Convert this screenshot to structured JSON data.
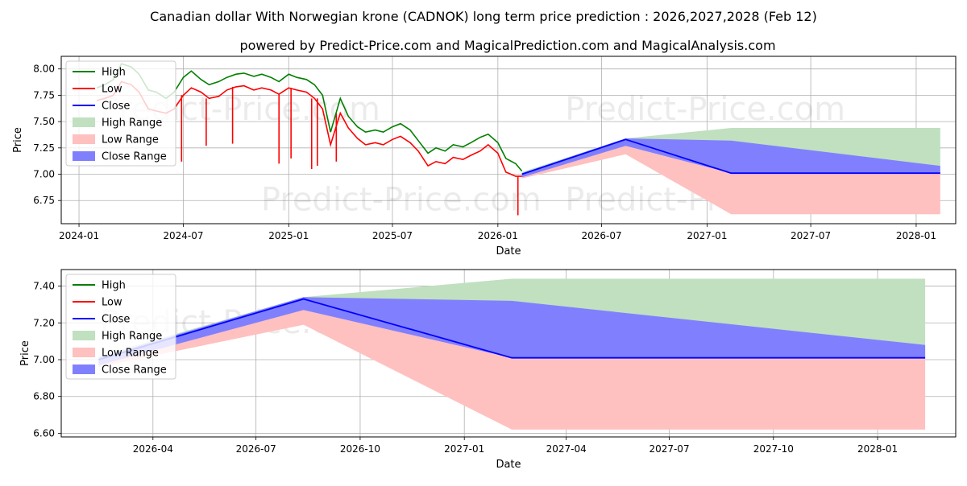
{
  "header": {
    "title": "Canadian dollar With Norwegian krone (CADNOK) long term price prediction : 2026,2027,2028 (Feb 12)",
    "subtitle": "powered by Predict-Price.com and MagicalPrediction.com and MagicalAnalysis.com"
  },
  "watermark": "Predict-Price.com",
  "colors": {
    "high": "#008000",
    "low": "#ff0000",
    "close": "#0000ff",
    "high_range": "#c0e0c0",
    "low_range": "#ffc0c0",
    "close_range": "#8080ff",
    "grid": "#b0b0b0"
  },
  "chart_data": [
    {
      "type": "line",
      "title": "",
      "xlabel": "Date",
      "ylabel": "Price",
      "xlim": [
        "2023-12-01",
        "2028-03-10"
      ],
      "ylim": [
        6.53,
        8.12
      ],
      "x_ticks": [
        "2024-01",
        "2024-07",
        "2025-01",
        "2025-07",
        "2026-01",
        "2026-07",
        "2027-01",
        "2027-07",
        "2028-01"
      ],
      "y_ticks": [
        6.75,
        7.0,
        7.25,
        7.5,
        7.75,
        8.0
      ],
      "grid": true,
      "legend": {
        "position": "top-left",
        "entries": [
          "High",
          "Low",
          "Close",
          "High Range",
          "Low Range",
          "Close Range"
        ]
      },
      "history": {
        "dates": [
          "2024-02-01",
          "2024-02-15",
          "2024-03-01",
          "2024-03-15",
          "2024-04-01",
          "2024-04-15",
          "2024-05-01",
          "2024-05-15",
          "2024-06-01",
          "2024-06-15",
          "2024-07-01",
          "2024-07-15",
          "2024-08-01",
          "2024-08-15",
          "2024-09-01",
          "2024-09-15",
          "2024-10-01",
          "2024-10-15",
          "2024-11-01",
          "2024-11-15",
          "2024-12-01",
          "2024-12-15",
          "2025-01-01",
          "2025-01-15",
          "2025-02-01",
          "2025-02-15",
          "2025-03-01",
          "2025-03-15",
          "2025-04-01",
          "2025-04-15",
          "2025-05-01",
          "2025-05-15",
          "2025-06-01",
          "2025-06-15",
          "2025-07-01",
          "2025-07-15",
          "2025-08-01",
          "2025-08-15",
          "2025-09-01",
          "2025-09-15",
          "2025-10-01",
          "2025-10-15",
          "2025-11-01",
          "2025-11-15",
          "2025-12-01",
          "2025-12-15",
          "2026-01-01",
          "2026-01-15",
          "2026-02-01",
          "2026-02-12"
        ],
        "high": [
          7.82,
          7.85,
          7.9,
          8.05,
          8.02,
          7.95,
          7.8,
          7.78,
          7.72,
          7.78,
          7.92,
          7.98,
          7.9,
          7.85,
          7.88,
          7.92,
          7.95,
          7.96,
          7.93,
          7.95,
          7.92,
          7.88,
          7.95,
          7.92,
          7.9,
          7.85,
          7.75,
          7.4,
          7.72,
          7.55,
          7.45,
          7.4,
          7.42,
          7.4,
          7.45,
          7.48,
          7.42,
          7.32,
          7.2,
          7.25,
          7.22,
          7.28,
          7.26,
          7.3,
          7.35,
          7.38,
          7.3,
          7.15,
          7.1,
          7.03
        ],
        "low": [
          7.7,
          7.72,
          7.75,
          7.88,
          7.85,
          7.78,
          7.62,
          7.6,
          7.58,
          7.62,
          7.75,
          7.82,
          7.78,
          7.72,
          7.74,
          7.8,
          7.83,
          7.84,
          7.8,
          7.82,
          7.8,
          7.76,
          7.82,
          7.8,
          7.78,
          7.72,
          7.62,
          7.28,
          7.58,
          7.44,
          7.34,
          7.28,
          7.3,
          7.28,
          7.33,
          7.36,
          7.3,
          7.22,
          7.08,
          7.12,
          7.1,
          7.16,
          7.14,
          7.18,
          7.22,
          7.28,
          7.2,
          7.02,
          6.98,
          6.98
        ],
        "low_spikes": [
          {
            "date": "2024-06-28",
            "value": 7.12
          },
          {
            "date": "2024-08-10",
            "value": 7.27
          },
          {
            "date": "2024-09-25",
            "value": 7.29
          },
          {
            "date": "2024-12-15",
            "value": 7.1
          },
          {
            "date": "2025-01-05",
            "value": 7.15
          },
          {
            "date": "2025-02-10",
            "value": 7.05
          },
          {
            "date": "2025-02-20",
            "value": 7.08
          },
          {
            "date": "2025-03-25",
            "value": 7.12
          },
          {
            "date": "2026-02-05",
            "value": 6.61
          }
        ]
      },
      "forecast": {
        "dates": [
          "2026-02-12",
          "2026-08-12",
          "2027-02-12",
          "2028-02-12"
        ],
        "close": [
          7.0,
          7.33,
          7.01,
          7.01
        ],
        "high_range": [
          [
            6.99,
            7.02
          ],
          [
            7.26,
            7.34
          ],
          [
            7.01,
            7.44
          ],
          [
            7.01,
            7.44
          ]
        ],
        "low_range": [
          [
            6.96,
            7.0
          ],
          [
            7.19,
            7.28
          ],
          [
            6.62,
            7.01
          ],
          [
            6.62,
            7.01
          ]
        ],
        "close_range": [
          [
            6.97,
            7.01
          ],
          [
            7.27,
            7.34
          ],
          [
            7.01,
            7.32
          ],
          [
            7.01,
            7.08
          ]
        ]
      }
    },
    {
      "type": "line",
      "title": "",
      "xlabel": "Date",
      "ylabel": "Price",
      "xlim": [
        "2026-01-10",
        "2028-03-10"
      ],
      "ylim": [
        6.58,
        7.49
      ],
      "x_ticks": [
        "2026-04",
        "2026-07",
        "2026-10",
        "2027-01",
        "2027-04",
        "2027-07",
        "2027-10",
        "2028-01"
      ],
      "y_ticks": [
        6.6,
        6.8,
        7.0,
        7.2,
        7.4
      ],
      "grid": true,
      "legend": {
        "position": "top-left",
        "entries": [
          "High",
          "Low",
          "Close",
          "High Range",
          "Low Range",
          "Close Range"
        ]
      },
      "forecast": {
        "dates": [
          "2026-02-12",
          "2026-08-12",
          "2027-02-12",
          "2028-02-12"
        ],
        "close": [
          7.0,
          7.33,
          7.01,
          7.01
        ],
        "high_range": [
          [
            6.99,
            7.02
          ],
          [
            7.26,
            7.34
          ],
          [
            7.01,
            7.44
          ],
          [
            7.01,
            7.44
          ]
        ],
        "low_range": [
          [
            6.96,
            7.0
          ],
          [
            7.19,
            7.28
          ],
          [
            6.62,
            7.01
          ],
          [
            6.62,
            7.01
          ]
        ],
        "close_range": [
          [
            6.97,
            7.01
          ],
          [
            7.27,
            7.34
          ],
          [
            7.01,
            7.32
          ],
          [
            7.01,
            7.08
          ]
        ]
      }
    }
  ]
}
